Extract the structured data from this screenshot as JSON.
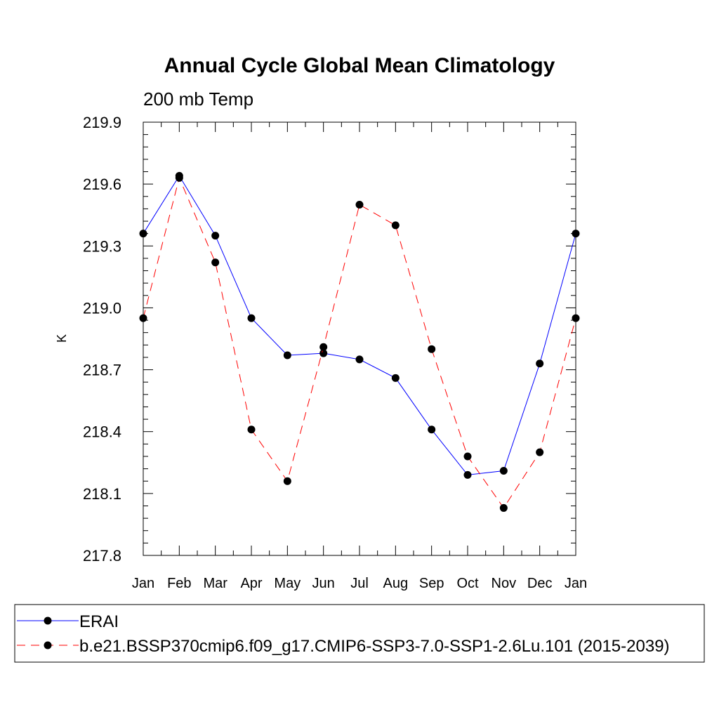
{
  "chart_data": {
    "type": "line",
    "title": "Annual Cycle Global Mean Climatology",
    "subtitle": "200 mb Temp",
    "xlabel": "",
    "ylabel": "K",
    "categories": [
      "Jan",
      "Feb",
      "Mar",
      "Apr",
      "May",
      "Jun",
      "Jul",
      "Aug",
      "Sep",
      "Oct",
      "Nov",
      "Dec",
      "Jan"
    ],
    "ylim": [
      217.8,
      219.9
    ],
    "yticks": [
      "217.8",
      "218.1",
      "218.4",
      "218.7",
      "219.0",
      "219.3",
      "219.6",
      "219.9"
    ],
    "grid": false,
    "legend_position": "bottom",
    "series": [
      {
        "name": "ERAI",
        "color": "#0000ff",
        "dash": "solid",
        "values": [
          219.36,
          219.64,
          219.35,
          218.95,
          218.77,
          218.78,
          218.75,
          218.66,
          218.41,
          218.19,
          218.21,
          218.73,
          219.36
        ]
      },
      {
        "name": "b.e21.BSSP370cmip6.f09_g17.CMIP6-SSP3-7.0-SSP1-2.6Lu.101 (2015-2039)",
        "color": "#ff0000",
        "dash": "dashed",
        "values": [
          218.95,
          219.63,
          219.22,
          218.41,
          218.16,
          218.81,
          219.5,
          219.4,
          218.8,
          218.28,
          218.03,
          218.3,
          218.95
        ]
      }
    ]
  }
}
